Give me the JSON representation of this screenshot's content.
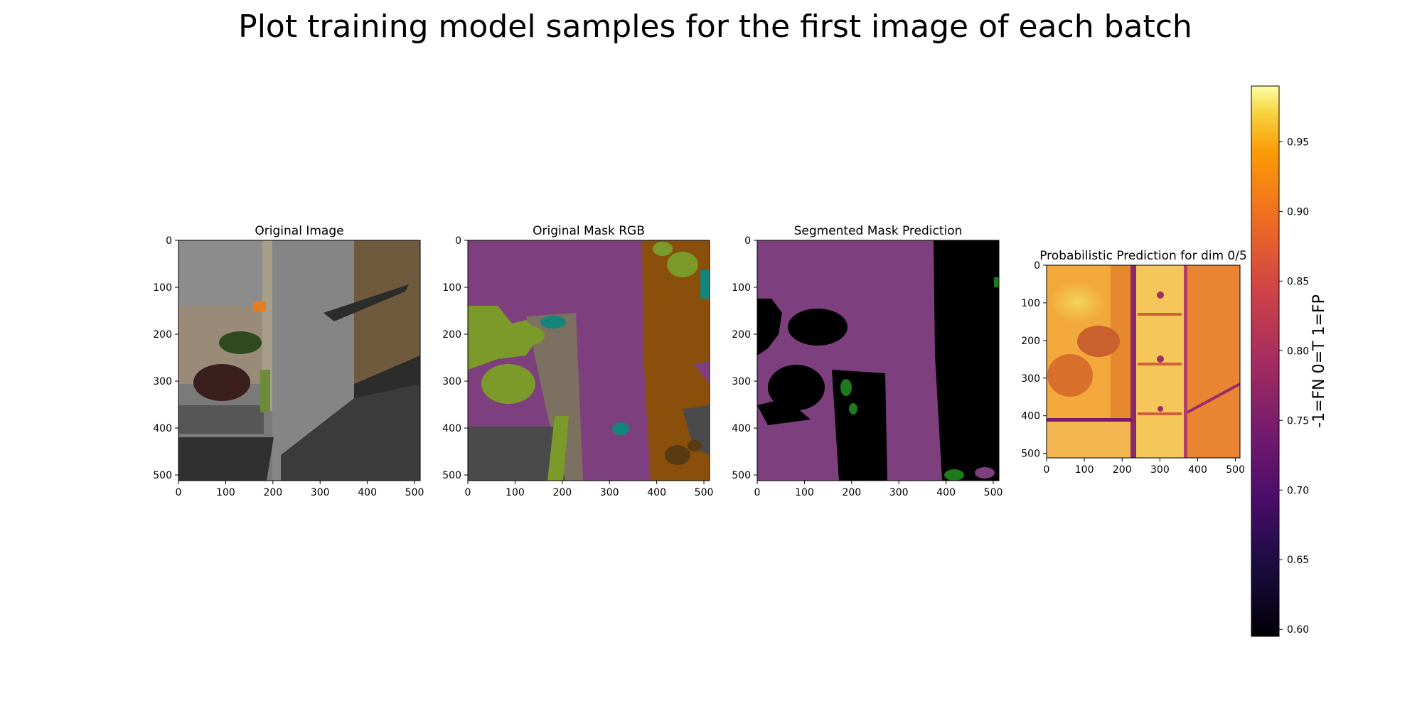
{
  "figure": {
    "suptitle": "Plot training model samples for the first image of each batch"
  },
  "panels": [
    {
      "title": "Original Image",
      "kind": "aerial-photo-icon"
    },
    {
      "title": "Original Mask RGB",
      "kind": "segmentation-mask-icon"
    },
    {
      "title": "Segmented Mask Prediction",
      "kind": "predicted-mask-icon"
    },
    {
      "title": "Probabilistic Prediction for dim 0/5",
      "kind": "probability-heatmap-icon"
    }
  ],
  "colorbar": {
    "label": "-1=FN 0=T 1=FP",
    "colormap": "inferno",
    "range": [
      0.595,
      0.99
    ],
    "ticks": [
      "0.60",
      "0.65",
      "0.70",
      "0.75",
      "0.80",
      "0.85",
      "0.90",
      "0.95"
    ]
  },
  "chart_data": [
    {
      "type": "image",
      "title": "Original Image",
      "xlim": [
        0,
        512
      ],
      "ylim": [
        512,
        0
      ],
      "xticks": [
        "0",
        "100",
        "200",
        "300",
        "400",
        "500"
      ],
      "yticks": [
        "0",
        "100",
        "200",
        "300",
        "400",
        "500"
      ]
    },
    {
      "type": "image",
      "title": "Original Mask RGB",
      "xlim": [
        0,
        512
      ],
      "ylim": [
        512,
        0
      ],
      "xticks": [
        "0",
        "100",
        "200",
        "300",
        "400",
        "500"
      ],
      "yticks": [
        "0",
        "100",
        "200",
        "300",
        "400",
        "500"
      ]
    },
    {
      "type": "image",
      "title": "Segmented Mask Prediction",
      "xlim": [
        0,
        512
      ],
      "ylim": [
        512,
        0
      ],
      "xticks": [
        "0",
        "100",
        "200",
        "300",
        "400",
        "500"
      ],
      "yticks": [
        "0",
        "100",
        "200",
        "300",
        "400",
        "500"
      ]
    },
    {
      "type": "heatmap",
      "title": "Probabilistic Prediction for dim 0/5",
      "xlim": [
        0,
        512
      ],
      "ylim": [
        512,
        0
      ],
      "xticks": [
        "0",
        "100",
        "200",
        "300",
        "400",
        "500"
      ],
      "yticks": [
        "0",
        "100",
        "200",
        "300",
        "400",
        "500"
      ],
      "zrange": [
        0.595,
        0.99
      ]
    }
  ],
  "colors": {
    "mask_purple": "#7e3f7e",
    "mask_green": "#7b9a2a",
    "mask_brown": "#8a4f0a",
    "mask_teal": "#14857a",
    "mask_tan": "#7c7060",
    "mask_dark": "#4a4a4a",
    "pred_green": "#1d7a1d"
  }
}
